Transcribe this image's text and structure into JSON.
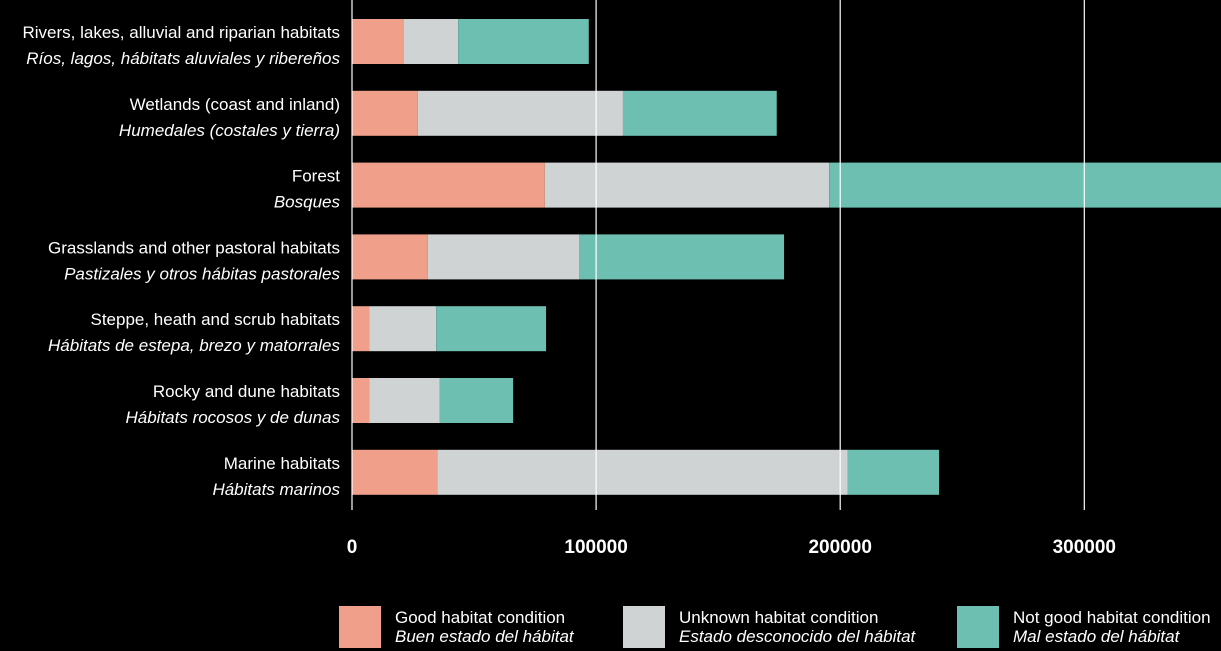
{
  "chart_data": {
    "type": "bar",
    "orientation": "horizontal",
    "stacked": true,
    "categories": [
      {
        "en": "Rivers, lakes, alluvial and riparian habitats",
        "es": "Ríos, lagos, hábitats aluviales y ribereños"
      },
      {
        "en": "Wetlands (coast and inland)",
        "es": "Humedales (costales y tierra)"
      },
      {
        "en": "Forest",
        "es": "Bosques"
      },
      {
        "en": "Grasslands and other pastoral habitats",
        "es": "Pastizales y otros hábitas pastorales"
      },
      {
        "en": "Steppe, heath and scrub habitats",
        "es": "Hábitats de estepa, brezo y matorrales"
      },
      {
        "en": "Rocky and dune habitats",
        "es": "Hábitats rocosos y de dunas"
      },
      {
        "en": "Marine habitats",
        "es": "Hábitats marinos"
      }
    ],
    "series": [
      {
        "name": "Good habitat condition",
        "name_es": "Buen estado del hábitat",
        "color": "#f0a08a",
        "values": [
          21000,
          27000,
          79000,
          31000,
          7000,
          7000,
          35000
        ]
      },
      {
        "name": "Unknown habitat condition",
        "name_es": "Estado desconocido del hábitat",
        "color": "#d0d3d4",
        "values": [
          22500,
          84000,
          116500,
          62000,
          27500,
          29000,
          168000
        ]
      },
      {
        "name": "Not good habitat condition",
        "name_es": "Mal estado del hábitat",
        "color": "#6dc0b1",
        "values": [
          53500,
          63000,
          166000,
          84000,
          45000,
          30000,
          37500
        ]
      }
    ],
    "xlim": [
      0,
      356000
    ],
    "xticks": [
      0,
      100000,
      200000,
      300000
    ],
    "xtick_labels": [
      "0",
      "100000",
      "200000",
      "300000"
    ],
    "grid": true,
    "legend_position": "bottom"
  }
}
